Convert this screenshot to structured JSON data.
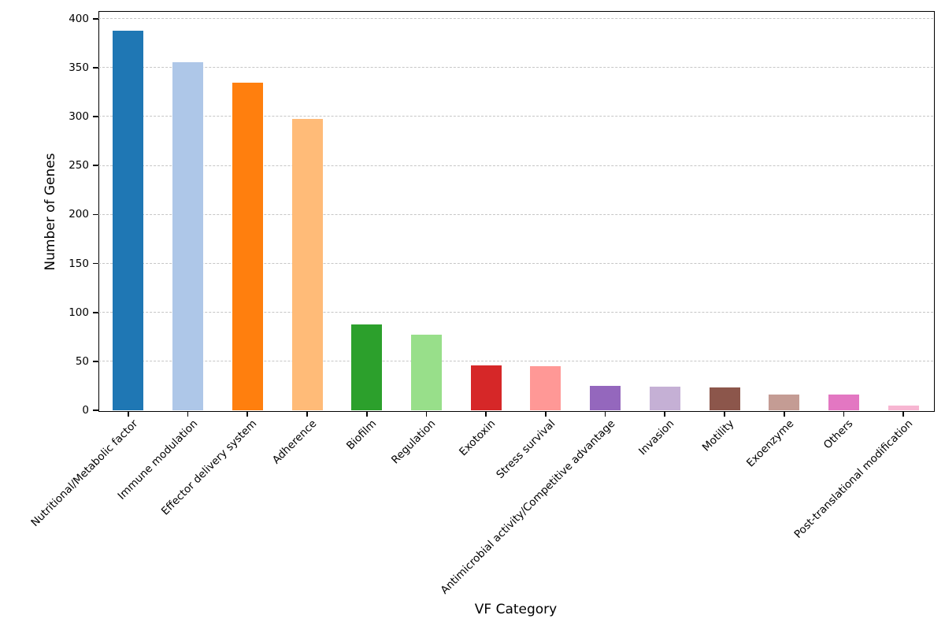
{
  "chart_data": {
    "type": "bar",
    "title": "",
    "xlabel": "VF Category",
    "ylabel": "Number of Genes",
    "categories": [
      "Nutritional/Metabolic factor",
      "Immune modulation",
      "Effector delivery system",
      "Adherence",
      "Biofilm",
      "Regulation",
      "Exotoxin",
      "Stress survival",
      "Antimicrobial activity/Competitive advantage",
      "Invasion",
      "Motility",
      "Exoenzyme",
      "Others",
      "Post-translational modification"
    ],
    "values": [
      388,
      356,
      335,
      298,
      88,
      77,
      46,
      45,
      25,
      24,
      23,
      16,
      16,
      5
    ],
    "bar_colors": [
      "#1f77b4",
      "#aec7e8",
      "#ff7f0e",
      "#ffbb78",
      "#2ca02c",
      "#98df8a",
      "#d62728",
      "#ff9896",
      "#9467bd",
      "#c5b0d5",
      "#8c564b",
      "#c49c94",
      "#e377c2",
      "#f7b6d2"
    ],
    "yticks": [
      0,
      50,
      100,
      150,
      200,
      250,
      300,
      350,
      400
    ],
    "ylim": [
      0,
      408
    ],
    "xtick_rotation_deg": 45,
    "grid": "horizontal dashed",
    "grid_color": "#c6c6c6",
    "axis_color": "#000000",
    "background_color": "#ffffff",
    "legend": "none"
  }
}
